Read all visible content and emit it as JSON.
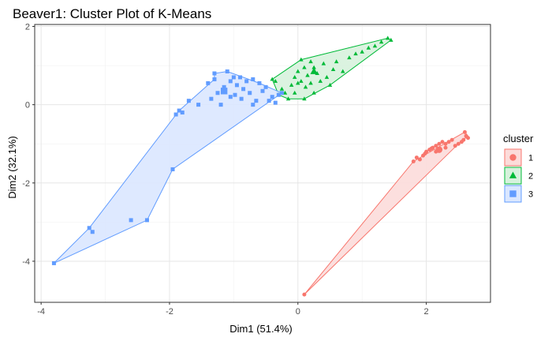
{
  "chart_data": {
    "type": "scatter",
    "title": "Beaver1: Cluster Plot of K-Means",
    "xlabel": "Dim1 (51.4%)",
    "ylabel": "Dim2 (32.1%)",
    "xlim": [
      -4.1,
      3.0
    ],
    "ylim": [
      -5.05,
      2.05
    ],
    "x_ticks": [
      -4,
      -2,
      0,
      2
    ],
    "y_ticks": [
      -4,
      -2,
      0,
      2
    ],
    "grid": true,
    "legend": {
      "title": "cluster",
      "placement": "right"
    },
    "series": [
      {
        "name": "1",
        "color": "#F8766D",
        "fill": "#FCDCDA",
        "shape": "circle",
        "hull": [
          [
            0.1,
            -4.85
          ],
          [
            2.5,
            -1.0
          ],
          [
            2.65,
            -0.8
          ],
          [
            2.6,
            -0.7
          ],
          [
            1.8,
            -1.45
          ]
        ],
        "center": [
          2.2,
          -1.15
        ],
        "points": [
          [
            0.1,
            -4.85
          ],
          [
            1.8,
            -1.45
          ],
          [
            1.85,
            -1.35
          ],
          [
            1.95,
            -1.3
          ],
          [
            1.98,
            -1.25
          ],
          [
            2.0,
            -1.2
          ],
          [
            2.05,
            -1.15
          ],
          [
            2.08,
            -1.12
          ],
          [
            2.1,
            -1.1
          ],
          [
            2.15,
            -1.05
          ],
          [
            2.2,
            -1.0
          ],
          [
            2.25,
            -0.95
          ],
          [
            2.3,
            -1.0
          ],
          [
            2.35,
            -0.95
          ],
          [
            2.4,
            -0.9
          ],
          [
            2.45,
            -1.05
          ],
          [
            2.5,
            -1.0
          ],
          [
            2.55,
            -0.95
          ],
          [
            2.6,
            -0.7
          ],
          [
            2.62,
            -0.8
          ],
          [
            2.65,
            -0.85
          ],
          [
            2.58,
            -0.9
          ],
          [
            2.3,
            -1.1
          ],
          [
            2.15,
            -1.2
          ],
          [
            1.9,
            -1.4
          ]
        ]
      },
      {
        "name": "2",
        "color": "#00BA38",
        "fill": "#D7F2DD",
        "shape": "triangle",
        "hull": [
          [
            -0.4,
            0.65
          ],
          [
            0.05,
            1.15
          ],
          [
            1.4,
            1.7
          ],
          [
            1.45,
            1.65
          ],
          [
            0.5,
            0.5
          ],
          [
            0.1,
            0.15
          ],
          [
            -0.15,
            0.15
          ],
          [
            -0.3,
            0.25
          ]
        ],
        "center": [
          0.25,
          0.85
        ],
        "points": [
          [
            -0.4,
            0.65
          ],
          [
            -0.35,
            0.6
          ],
          [
            -0.3,
            0.25
          ],
          [
            -0.25,
            0.4
          ],
          [
            -0.2,
            0.3
          ],
          [
            -0.15,
            0.15
          ],
          [
            -0.1,
            0.5
          ],
          [
            -0.05,
            0.7
          ],
          [
            0.0,
            0.85
          ],
          [
            0.05,
            1.15
          ],
          [
            0.05,
            0.6
          ],
          [
            0.1,
            0.95
          ],
          [
            0.1,
            0.15
          ],
          [
            0.12,
            0.45
          ],
          [
            0.15,
            0.75
          ],
          [
            0.2,
            0.55
          ],
          [
            0.2,
            1.1
          ],
          [
            0.25,
            0.95
          ],
          [
            0.3,
            0.8
          ],
          [
            0.35,
            0.6
          ],
          [
            0.4,
            1.05
          ],
          [
            0.45,
            0.7
          ],
          [
            0.5,
            0.5
          ],
          [
            0.55,
            0.9
          ],
          [
            0.6,
            1.1
          ],
          [
            0.7,
            0.85
          ],
          [
            0.8,
            1.2
          ],
          [
            0.9,
            1.3
          ],
          [
            1.0,
            1.35
          ],
          [
            1.1,
            1.45
          ],
          [
            1.2,
            1.5
          ],
          [
            1.3,
            1.6
          ],
          [
            1.4,
            1.7
          ],
          [
            1.45,
            1.65
          ],
          [
            -0.05,
            0.3
          ],
          [
            0.0,
            0.55
          ],
          [
            0.25,
            0.3
          ]
        ]
      },
      {
        "name": "3",
        "color": "#619CFF",
        "fill": "#DAE7FF",
        "shape": "square",
        "hull": [
          [
            -3.8,
            -4.05
          ],
          [
            -2.35,
            -2.95
          ],
          [
            -1.95,
            -1.65
          ],
          [
            -0.25,
            0.3
          ],
          [
            -0.6,
            0.55
          ],
          [
            -1.1,
            0.85
          ],
          [
            -1.3,
            0.8
          ],
          [
            -1.3,
            0.65
          ],
          [
            -1.85,
            -0.15
          ],
          [
            -3.25,
            -3.15
          ]
        ],
        "center": [
          -1.15,
          0.35
        ],
        "points": [
          [
            -3.8,
            -4.05
          ],
          [
            -3.25,
            -3.15
          ],
          [
            -3.2,
            -3.25
          ],
          [
            -2.35,
            -2.95
          ],
          [
            -2.6,
            -2.95
          ],
          [
            -1.95,
            -1.65
          ],
          [
            -1.9,
            -0.25
          ],
          [
            -1.85,
            -0.15
          ],
          [
            -1.8,
            -0.2
          ],
          [
            -1.7,
            0.1
          ],
          [
            -1.55,
            0.0
          ],
          [
            -1.4,
            0.55
          ],
          [
            -1.3,
            0.65
          ],
          [
            -1.3,
            0.8
          ],
          [
            -1.25,
            0.3
          ],
          [
            -1.2,
            0.0
          ],
          [
            -1.15,
            0.45
          ],
          [
            -1.1,
            0.85
          ],
          [
            -1.05,
            0.6
          ],
          [
            -1.0,
            0.7
          ],
          [
            -0.98,
            0.25
          ],
          [
            -0.95,
            0.5
          ],
          [
            -0.9,
            0.7
          ],
          [
            -0.88,
            0.15
          ],
          [
            -0.85,
            0.4
          ],
          [
            -0.8,
            0.6
          ],
          [
            -0.75,
            0.3
          ],
          [
            -0.7,
            0.65
          ],
          [
            -0.65,
            0.1
          ],
          [
            -0.6,
            0.55
          ],
          [
            -0.55,
            0.35
          ],
          [
            -0.5,
            0.45
          ],
          [
            -0.45,
            0.1
          ],
          [
            -0.4,
            0.2
          ],
          [
            -0.35,
            0.05
          ],
          [
            -0.3,
            0.25
          ],
          [
            -0.25,
            0.3
          ],
          [
            -1.35,
            0.15
          ],
          [
            -1.05,
            0.2
          ],
          [
            -0.7,
            0.0
          ]
        ]
      }
    ]
  }
}
